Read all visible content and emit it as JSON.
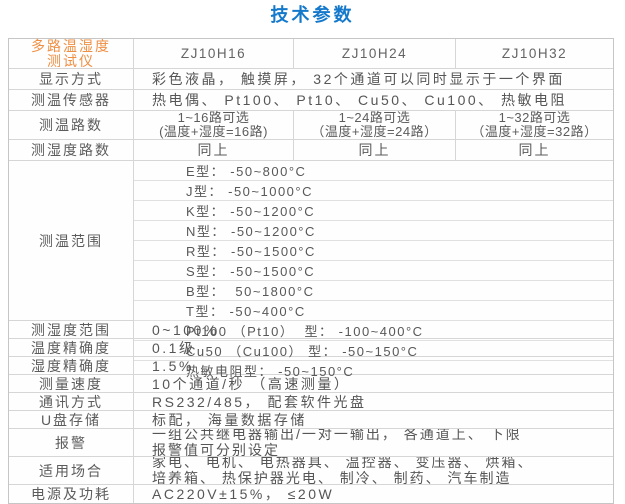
{
  "title": "技术参数",
  "colors": {
    "title_blue": "#1478cb",
    "label_orange": "#ef8f43",
    "text_gray": "#5a5a5a",
    "border_gray": "#c6c6c6"
  },
  "table": {
    "header": {
      "product_line1": "多路温湿度",
      "product_line2": "测试仪",
      "models": [
        "ZJ10H16",
        "ZJ10H24",
        "ZJ10H32"
      ]
    },
    "rows": {
      "display": {
        "label": "显示方式",
        "value": "彩色液晶， 触摸屏， 32个通道可以同时显示于一个界面"
      },
      "sensor": {
        "label": "测温传感器",
        "value": "热电偶、 Pt100、 Pt10、 Cu50、 Cu100、 热敏电阻"
      },
      "temp_channels": {
        "label": "测温路数",
        "options": [
          {
            "line1": "1~16路可选",
            "line2": "(温度+湿度=16路)"
          },
          {
            "line1": "1~24路可选",
            "line2": "（温度+湿度=24路）"
          },
          {
            "line1": "1~32路可选",
            "line2": "（温度+湿度=32路）"
          }
        ]
      },
      "humidity_channels": {
        "label": "测湿度路数",
        "options": [
          "同上",
          "同上",
          "同上"
        ]
      },
      "temp_range": {
        "label": "测温范围",
        "items": [
          "E型： -50~800°C",
          "J型： -50~1000°C",
          "K型： -50~1200°C",
          "N型： -50~1200°C",
          "R型： -50~1500°C",
          "S型： -50~1500°C",
          "B型：  50~1800°C",
          "T型： -50~400°C",
          "Pt100 （Pt10）  型： -100~400°C",
          "Cu50 （Cu100） 型： -50~150°C",
          "热敏电阻型： -50~150°C"
        ]
      },
      "humidity_range": {
        "label": "测湿度范围",
        "value": "0~100%"
      },
      "temp_accuracy": {
        "label": "温度精确度",
        "value": "0.1级"
      },
      "humidity_accuracy": {
        "label": "湿度精确度",
        "value": "1.5%"
      },
      "speed": {
        "label": "测量速度",
        "value": "10个通道/秒 （高速测量）"
      },
      "comm": {
        "label": "通讯方式",
        "value": "RS232/485， 配套软件光盘"
      },
      "usb": {
        "label": "U盘存储",
        "value": "标配， 海量数据存储"
      },
      "alarm": {
        "label": "报警",
        "line1": "一组公共继电器输出/一对一输出， 各通道上、 下限",
        "line2": "报警值可分别设定"
      },
      "application": {
        "label": "适用场合",
        "line1": "家电、 电机、 电热器具、 温控器、 变压器、 烘箱、",
        "line2": "培养箱、 热保护器光电、 制冷、 制药、 汽车制造"
      },
      "power": {
        "label": "电源及功耗",
        "value": "AC220V±15%， ≤20W"
      }
    }
  }
}
